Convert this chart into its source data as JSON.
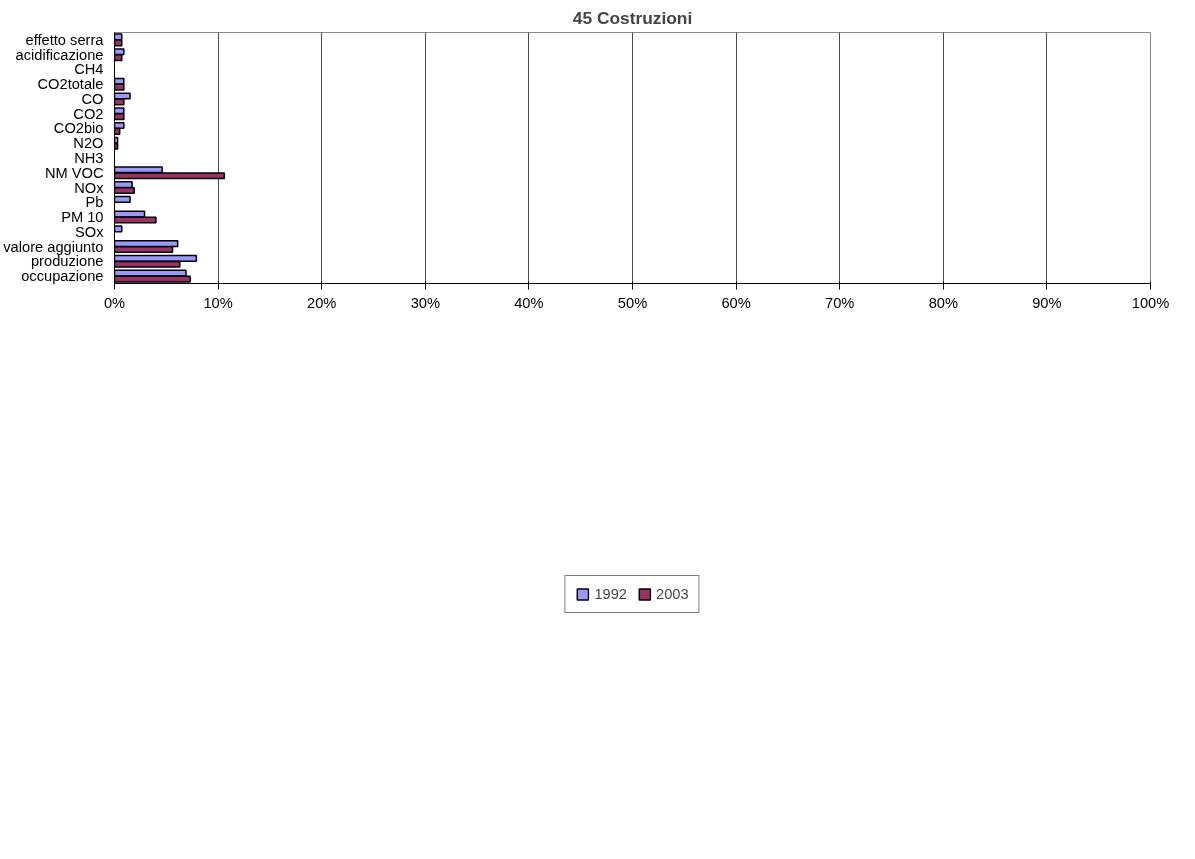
{
  "chart_data": {
    "type": "bar",
    "orientation": "horizontal",
    "title": "45 Costruzioni",
    "categories": [
      "effetto serra",
      "acidificazione",
      "CH4",
      "CO2totale",
      "CO",
      "CO2",
      "CO2bio",
      "N2O",
      "NH3",
      "NM VOC",
      "NOx",
      "Pb",
      "PM 10",
      "SOx",
      "valore aggiunto",
      "produzione",
      "occupazione"
    ],
    "series": [
      {
        "name": "1992",
        "color": "#9999ff",
        "values": [
          0.7,
          0.9,
          0,
          0.9,
          1.5,
          0.9,
          0.9,
          0.3,
          0,
          4.6,
          1.7,
          1.5,
          2.9,
          0.7,
          6.1,
          7.9,
          6.9
        ]
      },
      {
        "name": "2003",
        "color": "#993366",
        "values": [
          0.7,
          0.7,
          0,
          0.9,
          0.9,
          0.9,
          0.5,
          0.3,
          0,
          10.6,
          1.9,
          0,
          4.0,
          0,
          5.6,
          6.3,
          7.3
        ]
      }
    ],
    "xlim": [
      0,
      100
    ],
    "xticks": [
      {
        "value": 0,
        "label": "0%"
      },
      {
        "value": 10,
        "label": "10%"
      },
      {
        "value": 20,
        "label": "20%"
      },
      {
        "value": 30,
        "label": "30%"
      },
      {
        "value": 40,
        "label": "40%"
      },
      {
        "value": 50,
        "label": "50%"
      },
      {
        "value": 60,
        "label": "60%"
      },
      {
        "value": 70,
        "label": "70%"
      },
      {
        "value": 80,
        "label": "80%"
      },
      {
        "value": 90,
        "label": "90%"
      },
      {
        "value": 100,
        "label": "100%"
      }
    ],
    "grid": "x",
    "legend": "bottom"
  }
}
